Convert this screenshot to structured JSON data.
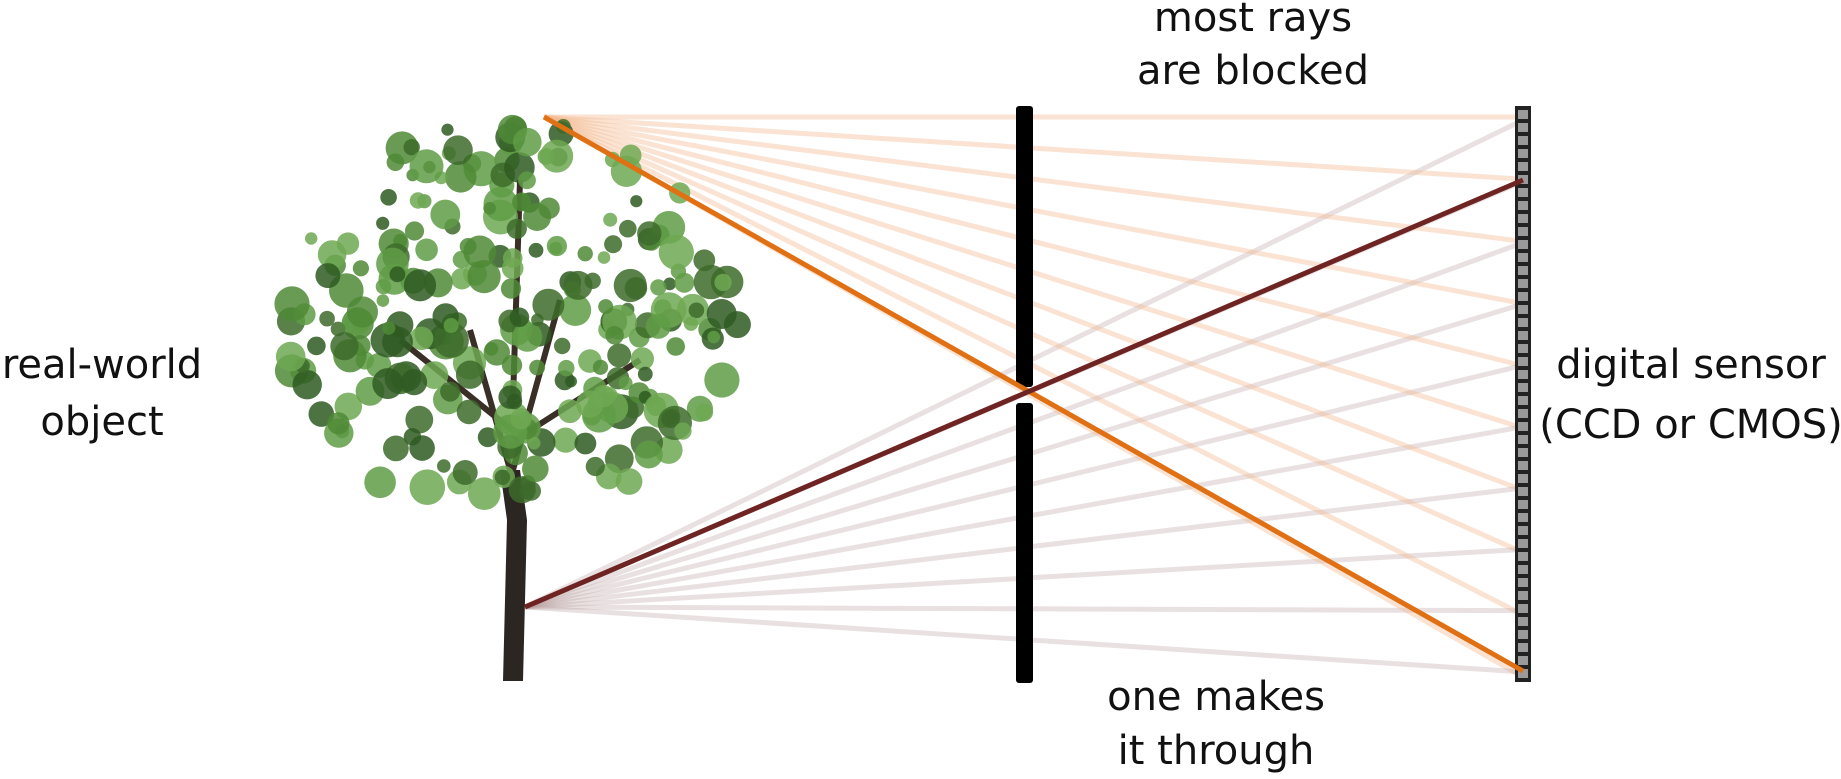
{
  "labels": {
    "top": [
      "most rays",
      "are blocked"
    ],
    "left": [
      "real-world",
      "object"
    ],
    "right": [
      "digital sensor",
      "(CCD or CMOS)"
    ],
    "bottom": [
      "one makes",
      "it through"
    ]
  }
}
